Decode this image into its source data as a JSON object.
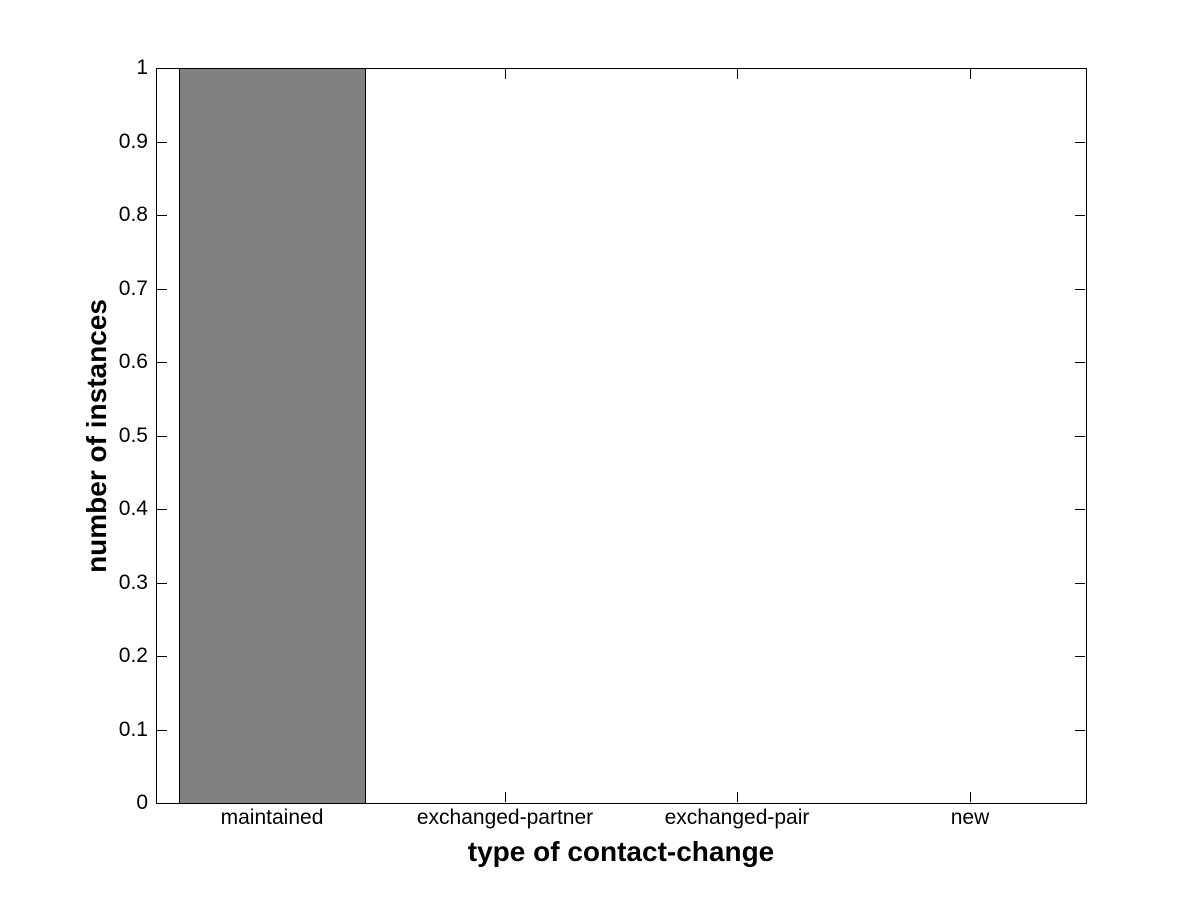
{
  "chart_data": {
    "type": "bar",
    "title": "",
    "categories": [
      "maintained",
      "exchanged-partner",
      "exchanged-pair",
      "new"
    ],
    "values": [
      1,
      0,
      0,
      0
    ],
    "xlabel": "type of contact-change",
    "ylabel": "number of instances",
    "ylim": [
      0,
      1
    ],
    "yticks": [
      {
        "label": "0",
        "value": 0
      },
      {
        "label": "0.1",
        "value": 0.1
      },
      {
        "label": "0.2",
        "value": 0.2
      },
      {
        "label": "0.3",
        "value": 0.3
      },
      {
        "label": "0.4",
        "value": 0.4
      },
      {
        "label": "0.5",
        "value": 0.5
      },
      {
        "label": "0.6",
        "value": 0.6
      },
      {
        "label": "0.7",
        "value": 0.7
      },
      {
        "label": "0.8",
        "value": 0.8
      },
      {
        "label": "0.9",
        "value": 0.9
      },
      {
        "label": "1",
        "value": 1
      }
    ],
    "bar_color": "#808080",
    "bar_edge_color": "#000000",
    "axis_color": "#000000",
    "background_color": "#ffffff",
    "bar_width_fraction": 0.8,
    "grid": false,
    "legend": "none",
    "box": true,
    "tick_direction": "in"
  }
}
